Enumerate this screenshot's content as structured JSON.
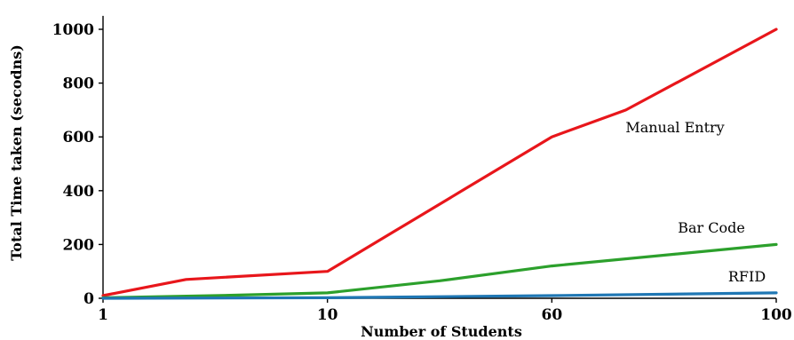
{
  "chart_data": {
    "type": "line",
    "title": "",
    "xlabel": "Number of Students",
    "ylabel": "Total Time taken (secodns)",
    "x_categories": [
      "1",
      "10",
      "60",
      "100"
    ],
    "y_ticks": [
      0,
      200,
      400,
      600,
      800,
      1000
    ],
    "ylim": [
      0,
      1050
    ],
    "grid": false,
    "legend": "inline labels",
    "series": [
      {
        "name": "Manual Entry",
        "color": "#e8161b",
        "points": [
          [
            0,
            10
          ],
          [
            0.37,
            70
          ],
          [
            1,
            100
          ],
          [
            1.3,
            250
          ],
          [
            1.6,
            400
          ],
          [
            2,
            600
          ],
          [
            2.33,
            700
          ],
          [
            3,
            1000
          ]
        ]
      },
      {
        "name": "Bar Code",
        "color": "#2ca02c",
        "points": [
          [
            0,
            2
          ],
          [
            0.5,
            10
          ],
          [
            1,
            20
          ],
          [
            1.5,
            65
          ],
          [
            2,
            120
          ],
          [
            3,
            200
          ]
        ]
      },
      {
        "name": "RFID",
        "color": "#1f77b4",
        "points": [
          [
            0,
            0
          ],
          [
            1,
            2
          ],
          [
            2,
            10
          ],
          [
            3,
            20
          ]
        ]
      }
    ]
  }
}
